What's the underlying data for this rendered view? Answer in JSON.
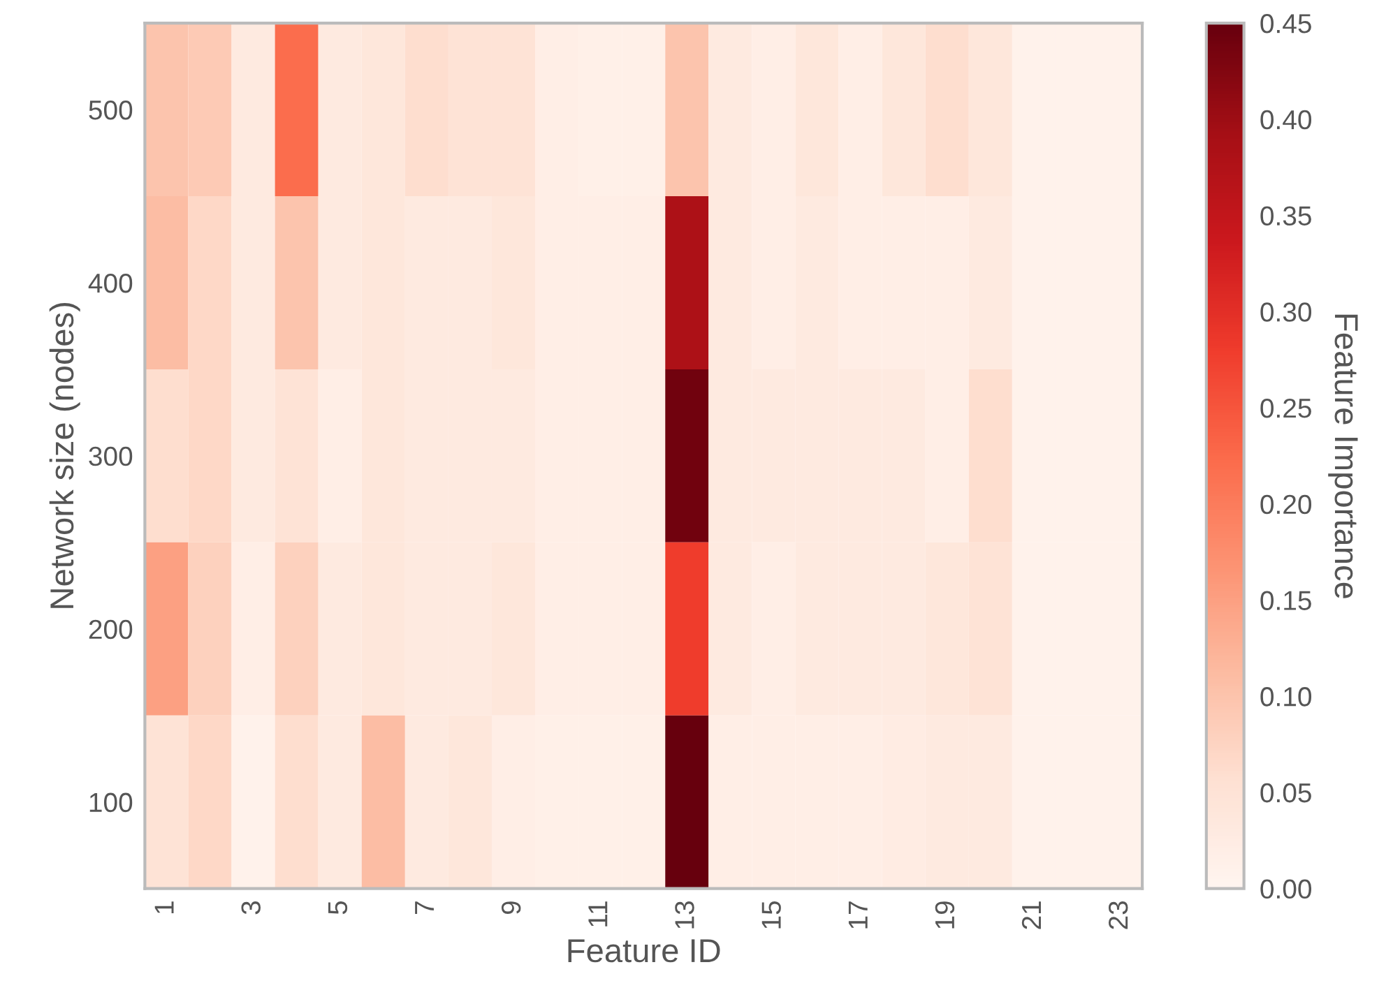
{
  "chart_data": {
    "type": "heatmap",
    "xlabel": "Feature ID",
    "ylabel": "Network size (nodes)",
    "clabel": "Feature Importance",
    "categories": [
      "1",
      null,
      "3",
      null,
      "5",
      null,
      "7",
      null,
      "9",
      null,
      "11",
      null,
      "13",
      null,
      "15",
      null,
      "17",
      null,
      "19",
      null,
      "21",
      null,
      "23"
    ],
    "y_categories": [
      "500",
      "400",
      "300",
      "200",
      "100"
    ],
    "cells": [
      [
        0.1,
        0.09,
        0.03,
        0.22,
        0.03,
        0.04,
        0.06,
        0.05,
        0.05,
        0.02,
        0.015,
        0.015,
        0.1,
        0.03,
        0.02,
        0.04,
        0.02,
        0.04,
        0.06,
        0.04,
        0.01,
        0.01,
        0.01
      ],
      [
        0.11,
        0.07,
        0.03,
        0.1,
        0.03,
        0.04,
        0.03,
        0.03,
        0.04,
        0.02,
        0.02,
        0.02,
        0.38,
        0.03,
        0.02,
        0.03,
        0.02,
        0.02,
        0.02,
        0.03,
        0.01,
        0.01,
        0.01
      ],
      [
        0.06,
        0.07,
        0.03,
        0.05,
        0.02,
        0.04,
        0.03,
        0.03,
        0.03,
        0.02,
        0.02,
        0.02,
        0.44,
        0.03,
        0.03,
        0.03,
        0.03,
        0.03,
        0.02,
        0.06,
        0.01,
        0.01,
        0.01
      ],
      [
        0.15,
        0.08,
        0.02,
        0.08,
        0.03,
        0.04,
        0.03,
        0.03,
        0.04,
        0.02,
        0.02,
        0.02,
        0.28,
        0.03,
        0.02,
        0.03,
        0.03,
        0.03,
        0.04,
        0.05,
        0.01,
        0.01,
        0.01
      ],
      [
        0.05,
        0.07,
        0.01,
        0.06,
        0.03,
        0.11,
        0.03,
        0.04,
        0.02,
        0.015,
        0.015,
        0.015,
        0.45,
        0.02,
        0.02,
        0.02,
        0.02,
        0.025,
        0.03,
        0.03,
        0.01,
        0.01,
        0.01
      ]
    ],
    "clim": [
      0,
      0.45
    ],
    "cticks": [
      {
        "value": 0,
        "label": "0.00"
      },
      {
        "value": 0.05,
        "label": "0.05"
      },
      {
        "value": 0.1,
        "label": "0.10"
      },
      {
        "value": 0.15,
        "label": "0.15"
      },
      {
        "value": 0.2,
        "label": "0.20"
      },
      {
        "value": 0.25,
        "label": "0.25"
      },
      {
        "value": 0.3,
        "label": "0.30"
      },
      {
        "value": 0.35,
        "label": "0.35"
      },
      {
        "value": 0.4,
        "label": "0.40"
      },
      {
        "value": 0.45,
        "label": "0.45"
      }
    ]
  }
}
